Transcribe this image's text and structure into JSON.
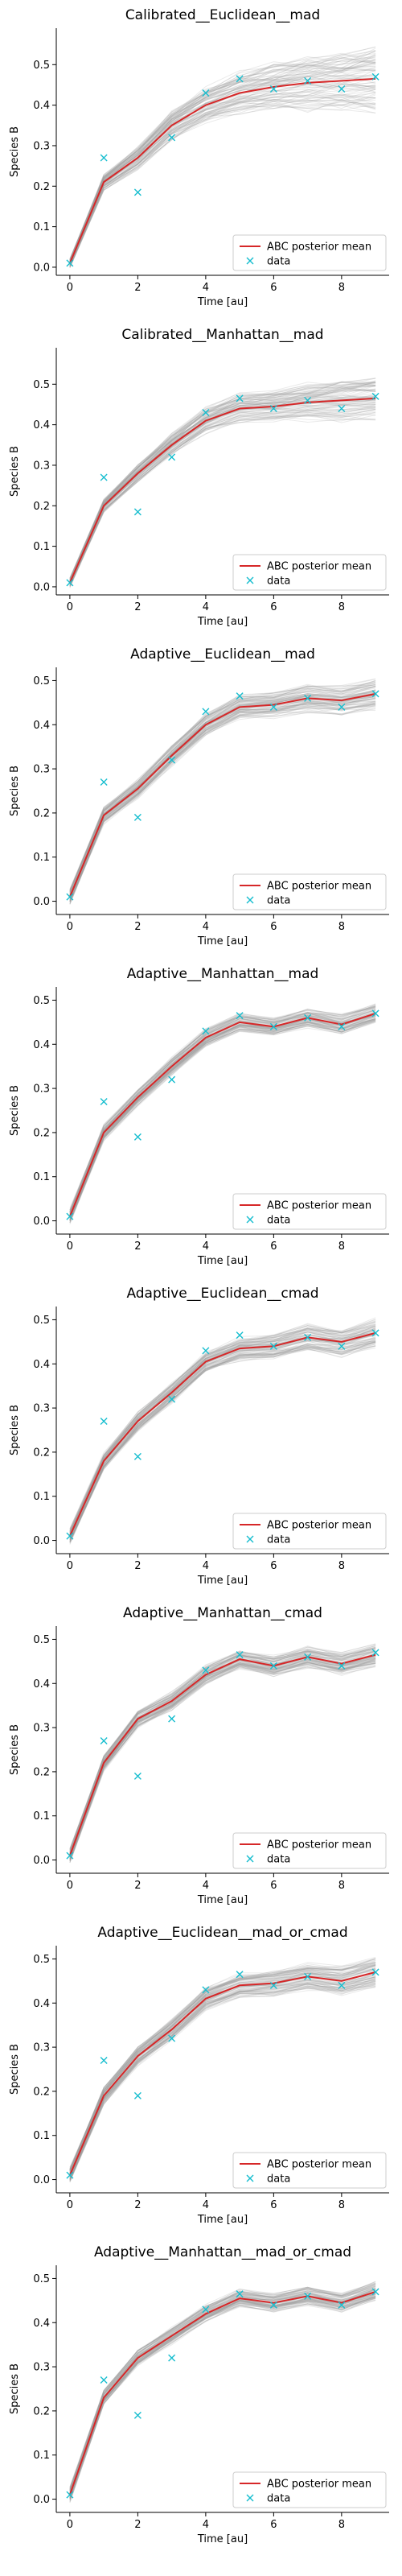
{
  "figure": {
    "panel_count": 8
  },
  "chart_data": [
    {
      "type": "line",
      "title": "Calibrated__Euclidean__mad",
      "xlabel": "Time [au]",
      "ylabel": "Species B",
      "xlim": [
        -0.4,
        9.4
      ],
      "ylim": [
        -0.02,
        0.59
      ],
      "xticks": [
        0,
        2,
        4,
        6,
        8
      ],
      "xtick_labels": [
        "0",
        "2",
        "4",
        "6",
        "8"
      ],
      "yticks": [
        0.0,
        0.1,
        0.2,
        0.3,
        0.4,
        0.5
      ],
      "ytick_labels": [
        "0.0",
        "0.1",
        "0.2",
        "0.3",
        "0.4",
        "0.5"
      ],
      "x": [
        0,
        1,
        2,
        3,
        4,
        5,
        6,
        7,
        8,
        9
      ],
      "series": [
        {
          "name": "ABC posterior mean",
          "kind": "line",
          "color": "#d62728",
          "values": [
            0.01,
            0.21,
            0.27,
            0.35,
            0.4,
            0.43,
            0.445,
            0.455,
            0.46,
            0.465
          ]
        },
        {
          "name": "data",
          "kind": "marker",
          "marker": "x",
          "color": "#17becf",
          "values": [
            0.01,
            0.27,
            0.185,
            0.32,
            0.43,
            0.465,
            0.44,
            0.46,
            0.44,
            0.47
          ]
        }
      ],
      "band": {
        "color": "#9e9e9e",
        "spread_start": 0.01,
        "spread_end": 0.07
      },
      "legend_position": "lower right",
      "grid": false
    },
    {
      "type": "line",
      "title": "Calibrated__Manhattan__mad",
      "xlabel": "Time [au]",
      "ylabel": "Species B",
      "xlim": [
        -0.4,
        9.4
      ],
      "ylim": [
        -0.02,
        0.59
      ],
      "xticks": [
        0,
        2,
        4,
        6,
        8
      ],
      "xtick_labels": [
        "0",
        "2",
        "4",
        "6",
        "8"
      ],
      "yticks": [
        0.0,
        0.1,
        0.2,
        0.3,
        0.4,
        0.5
      ],
      "ytick_labels": [
        "0.0",
        "0.1",
        "0.2",
        "0.3",
        "0.4",
        "0.5"
      ],
      "x": [
        0,
        1,
        2,
        3,
        4,
        5,
        6,
        7,
        8,
        9
      ],
      "series": [
        {
          "name": "ABC posterior mean",
          "kind": "line",
          "color": "#d62728",
          "values": [
            0.01,
            0.2,
            0.28,
            0.35,
            0.41,
            0.44,
            0.445,
            0.455,
            0.46,
            0.465
          ]
        },
        {
          "name": "data",
          "kind": "marker",
          "marker": "x",
          "color": "#17becf",
          "values": [
            0.01,
            0.27,
            0.185,
            0.32,
            0.43,
            0.465,
            0.44,
            0.46,
            0.44,
            0.47
          ]
        }
      ],
      "band": {
        "color": "#9e9e9e",
        "spread_start": 0.01,
        "spread_end": 0.05
      },
      "legend_position": "lower right",
      "grid": false
    },
    {
      "type": "line",
      "title": "Adaptive__Euclidean__mad",
      "xlabel": "Time [au]",
      "ylabel": "Species B",
      "xlim": [
        -0.4,
        9.4
      ],
      "ylim": [
        -0.03,
        0.53
      ],
      "xticks": [
        0,
        2,
        4,
        6,
        8
      ],
      "xtick_labels": [
        "0",
        "2",
        "4",
        "6",
        "8"
      ],
      "yticks": [
        0.0,
        0.1,
        0.2,
        0.3,
        0.4,
        0.5
      ],
      "ytick_labels": [
        "0.0",
        "0.1",
        "0.2",
        "0.3",
        "0.4",
        "0.5"
      ],
      "x": [
        0,
        1,
        2,
        3,
        4,
        5,
        6,
        7,
        8,
        9
      ],
      "series": [
        {
          "name": "ABC posterior mean",
          "kind": "line",
          "color": "#d62728",
          "values": [
            0.01,
            0.195,
            0.255,
            0.33,
            0.4,
            0.44,
            0.445,
            0.46,
            0.455,
            0.47
          ]
        },
        {
          "name": "data",
          "kind": "marker",
          "marker": "x",
          "color": "#17becf",
          "values": [
            0.01,
            0.27,
            0.19,
            0.32,
            0.43,
            0.465,
            0.44,
            0.46,
            0.44,
            0.47
          ]
        }
      ],
      "band": {
        "color": "#9e9e9e",
        "spread_start": 0.015,
        "spread_end": 0.03
      },
      "legend_position": "lower right",
      "grid": false
    },
    {
      "type": "line",
      "title": "Adaptive__Manhattan__mad",
      "xlabel": "Time [au]",
      "ylabel": "Species B",
      "xlim": [
        -0.4,
        9.4
      ],
      "ylim": [
        -0.03,
        0.53
      ],
      "xticks": [
        0,
        2,
        4,
        6,
        8
      ],
      "xtick_labels": [
        "0",
        "2",
        "4",
        "6",
        "8"
      ],
      "yticks": [
        0.0,
        0.1,
        0.2,
        0.3,
        0.4,
        0.5
      ],
      "ytick_labels": [
        "0.0",
        "0.1",
        "0.2",
        "0.3",
        "0.4",
        "0.5"
      ],
      "x": [
        0,
        1,
        2,
        3,
        4,
        5,
        6,
        7,
        8,
        9
      ],
      "series": [
        {
          "name": "ABC posterior mean",
          "kind": "line",
          "color": "#d62728",
          "values": [
            0.01,
            0.2,
            0.28,
            0.35,
            0.415,
            0.45,
            0.44,
            0.46,
            0.445,
            0.47
          ]
        },
        {
          "name": "data",
          "kind": "marker",
          "marker": "x",
          "color": "#17becf",
          "values": [
            0.01,
            0.27,
            0.19,
            0.32,
            0.43,
            0.465,
            0.44,
            0.46,
            0.44,
            0.47
          ]
        }
      ],
      "band": {
        "color": "#9e9e9e",
        "spread_start": 0.015,
        "spread_end": 0.02
      },
      "legend_position": "lower right",
      "grid": false
    },
    {
      "type": "line",
      "title": "Adaptive__Euclidean__cmad",
      "xlabel": "Time [au]",
      "ylabel": "Species B",
      "xlim": [
        -0.4,
        9.4
      ],
      "ylim": [
        -0.03,
        0.53
      ],
      "xticks": [
        0,
        2,
        4,
        6,
        8
      ],
      "xtick_labels": [
        "0",
        "2",
        "4",
        "6",
        "8"
      ],
      "yticks": [
        0.0,
        0.1,
        0.2,
        0.3,
        0.4,
        0.5
      ],
      "ytick_labels": [
        "0.0",
        "0.1",
        "0.2",
        "0.3",
        "0.4",
        "0.5"
      ],
      "x": [
        0,
        1,
        2,
        3,
        4,
        5,
        6,
        7,
        8,
        9
      ],
      "series": [
        {
          "name": "ABC posterior mean",
          "kind": "line",
          "color": "#d62728",
          "values": [
            0.01,
            0.18,
            0.27,
            0.335,
            0.405,
            0.435,
            0.44,
            0.46,
            0.45,
            0.47
          ]
        },
        {
          "name": "data",
          "kind": "marker",
          "marker": "x",
          "color": "#17becf",
          "values": [
            0.01,
            0.27,
            0.19,
            0.32,
            0.43,
            0.465,
            0.44,
            0.46,
            0.44,
            0.47
          ]
        }
      ],
      "band": {
        "color": "#9e9e9e",
        "spread_start": 0.015,
        "spread_end": 0.03
      },
      "legend_position": "lower right",
      "grid": false
    },
    {
      "type": "line",
      "title": "Adaptive__Manhattan__cmad",
      "xlabel": "Time [au]",
      "ylabel": "Species B",
      "xlim": [
        -0.4,
        9.4
      ],
      "ylim": [
        -0.03,
        0.53
      ],
      "xticks": [
        0,
        2,
        4,
        6,
        8
      ],
      "xtick_labels": [
        "0",
        "2",
        "4",
        "6",
        "8"
      ],
      "yticks": [
        0.0,
        0.1,
        0.2,
        0.3,
        0.4,
        0.5
      ],
      "ytick_labels": [
        "0.0",
        "0.1",
        "0.2",
        "0.3",
        "0.4",
        "0.5"
      ],
      "x": [
        0,
        1,
        2,
        3,
        4,
        5,
        6,
        7,
        8,
        9
      ],
      "series": [
        {
          "name": "ABC posterior mean",
          "kind": "line",
          "color": "#d62728",
          "values": [
            0.01,
            0.22,
            0.32,
            0.36,
            0.42,
            0.455,
            0.44,
            0.46,
            0.445,
            0.465
          ]
        },
        {
          "name": "data",
          "kind": "marker",
          "marker": "x",
          "color": "#17becf",
          "values": [
            0.01,
            0.27,
            0.19,
            0.32,
            0.43,
            0.465,
            0.44,
            0.46,
            0.44,
            0.47
          ]
        }
      ],
      "band": {
        "color": "#9e9e9e",
        "spread_start": 0.015,
        "spread_end": 0.025
      },
      "legend_position": "lower right",
      "grid": false
    },
    {
      "type": "line",
      "title": "Adaptive__Euclidean__mad_or_cmad",
      "xlabel": "Time [au]",
      "ylabel": "Species B",
      "xlim": [
        -0.4,
        9.4
      ],
      "ylim": [
        -0.03,
        0.53
      ],
      "xticks": [
        0,
        2,
        4,
        6,
        8
      ],
      "xtick_labels": [
        "0",
        "2",
        "4",
        "6",
        "8"
      ],
      "yticks": [
        0.0,
        0.1,
        0.2,
        0.3,
        0.4,
        0.5
      ],
      "ytick_labels": [
        "0.0",
        "0.1",
        "0.2",
        "0.3",
        "0.4",
        "0.5"
      ],
      "x": [
        0,
        1,
        2,
        3,
        4,
        5,
        6,
        7,
        8,
        9
      ],
      "series": [
        {
          "name": "ABC posterior mean",
          "kind": "line",
          "color": "#d62728",
          "values": [
            0.01,
            0.19,
            0.28,
            0.34,
            0.41,
            0.44,
            0.445,
            0.46,
            0.45,
            0.47
          ]
        },
        {
          "name": "data",
          "kind": "marker",
          "marker": "x",
          "color": "#17becf",
          "values": [
            0.01,
            0.27,
            0.19,
            0.32,
            0.43,
            0.465,
            0.44,
            0.46,
            0.44,
            0.47
          ]
        }
      ],
      "band": {
        "color": "#9e9e9e",
        "spread_start": 0.015,
        "spread_end": 0.03
      },
      "legend_position": "lower right",
      "grid": false
    },
    {
      "type": "line",
      "title": "Adaptive__Manhattan__mad_or_cmad",
      "xlabel": "Time [au]",
      "ylabel": "Species B",
      "xlim": [
        -0.4,
        9.4
      ],
      "ylim": [
        -0.03,
        0.53
      ],
      "xticks": [
        0,
        2,
        4,
        6,
        8
      ],
      "xtick_labels": [
        "0",
        "2",
        "4",
        "6",
        "8"
      ],
      "yticks": [
        0.0,
        0.1,
        0.2,
        0.3,
        0.4,
        0.5
      ],
      "ytick_labels": [
        "0.0",
        "0.1",
        "0.2",
        "0.3",
        "0.4",
        "0.5"
      ],
      "x": [
        0,
        1,
        2,
        3,
        4,
        5,
        6,
        7,
        8,
        9
      ],
      "series": [
        {
          "name": "ABC posterior mean",
          "kind": "line",
          "color": "#d62728",
          "values": [
            0.01,
            0.23,
            0.32,
            0.37,
            0.42,
            0.455,
            0.445,
            0.46,
            0.445,
            0.47
          ]
        },
        {
          "name": "data",
          "kind": "marker",
          "marker": "x",
          "color": "#17becf",
          "values": [
            0.01,
            0.27,
            0.19,
            0.32,
            0.43,
            0.465,
            0.44,
            0.46,
            0.44,
            0.47
          ]
        }
      ],
      "band": {
        "color": "#9e9e9e",
        "spread_start": 0.015,
        "spread_end": 0.02
      },
      "legend_position": "lower right",
      "grid": false
    }
  ]
}
